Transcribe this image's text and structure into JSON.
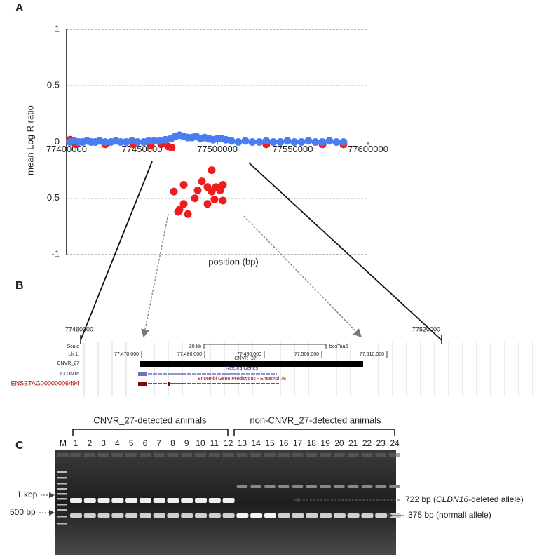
{
  "panel_labels": [
    "A",
    "B",
    "C"
  ],
  "chart_data": {
    "type": "scatter",
    "y_label": "mean Log R ratio",
    "x_label": "position (bp)",
    "xlim": [
      77400000,
      77600000
    ],
    "xticks": [
      77400000,
      77450000,
      77500000,
      77550000,
      77600000
    ],
    "ylim": [
      -1,
      1
    ],
    "yticks": [
      -1,
      -0.5,
      0,
      0.5,
      1
    ],
    "grid": true,
    "series": [
      {
        "color": "#ee1c1c",
        "x": [
          77402300,
          77406000,
          77425600,
          77444200,
          77455800,
          77462800,
          77467400,
          77469700,
          77532500,
          77569800,
          77583700,
          77496300,
          77489800,
          77493500,
          77477700,
          77499100,
          77503700,
          77471200,
          77487000,
          77496300,
          77501900,
          77485100,
          77498100,
          77503700,
          77477700,
          77493500,
          77474900,
          77474000,
          77480500
        ],
        "values": [
          0.02,
          -0.02,
          -0.02,
          -0.02,
          -0.03,
          -0.02,
          -0.04,
          -0.05,
          -0.02,
          -0.02,
          -0.02,
          -0.25,
          -0.35,
          -0.4,
          -0.38,
          -0.4,
          -0.38,
          -0.44,
          -0.43,
          -0.44,
          -0.43,
          -0.5,
          -0.51,
          -0.52,
          -0.55,
          -0.55,
          -0.6,
          -0.62,
          -0.64
        ]
      },
      {
        "color": "#4a7ef0",
        "x": [
          77402300,
          77405100,
          77407900,
          77410700,
          77413500,
          77416300,
          77419100,
          77421900,
          77425600,
          77429300,
          77432600,
          77435800,
          77439500,
          77443300,
          77447000,
          77451200,
          77454400,
          77458100,
          77461800,
          77465600,
          77469300,
          77472100,
          77474900,
          77477700,
          77480400,
          77483200,
          77486000,
          77488800,
          77491600,
          77494400,
          77497200,
          77500000,
          77502800,
          77505600,
          77509300,
          77513900,
          77518600,
          77523200,
          77527900,
          77532500,
          77537200,
          77541800,
          77546500,
          77551100,
          77555800,
          77560400,
          77565100,
          77569700,
          77574400,
          77579000,
          77583700
        ],
        "values": [
          0,
          0.01,
          0,
          0,
          0.01,
          0,
          0,
          0.01,
          0,
          0,
          0.01,
          0,
          0,
          0.01,
          0,
          0,
          0.01,
          0.01,
          0.01,
          0.02,
          0.03,
          0.05,
          0.06,
          0.05,
          0.04,
          0.04,
          0.05,
          0.03,
          0.04,
          0.03,
          0.02,
          0.03,
          0.03,
          0.02,
          0.01,
          0,
          0.01,
          0,
          0,
          0.01,
          0,
          0,
          0.01,
          0,
          0,
          0.01,
          0,
          0,
          0.01,
          0,
          0
        ]
      }
    ]
  },
  "browser": {
    "left_coord": "77460000",
    "right_coord": "77520000",
    "scale_label": "Scale",
    "chrom": "chr1:",
    "scale_bar": "20 kb",
    "assembly": "bosTau6",
    "positions": [
      "77,470,000",
      "77,480,000",
      "77,490,000",
      "77,500,000",
      "77,510,000"
    ],
    "tracks": {
      "cnv_left": "CNVR_27",
      "cnv_bar": "CNVR_27",
      "refseq_title": "RefSeq Genes",
      "gene": "CLDN16",
      "ensembl_title": "Ensembl Gene Predictions - Ensembl 76",
      "ensembl_gene": "ENSBTAG00000006494"
    }
  },
  "gel": {
    "group1": "CNVR_27-detected animals",
    "group2": "non-CNVR_27-detected animals",
    "lanes": [
      "M",
      "1",
      "2",
      "3",
      "4",
      "5",
      "6",
      "7",
      "8",
      "9",
      "10",
      "11",
      "12",
      "13",
      "14",
      "15",
      "16",
      "17",
      "18",
      "19",
      "20",
      "21",
      "22",
      "23",
      "24"
    ],
    "ladder_1kbp": "1 kbp",
    "ladder_500bp": "500 bp",
    "band_deleted": {
      "size": "722 bp (",
      "gene": "CLDN16",
      "rest": "-deleted allele)"
    },
    "band_normal": "375 bp (normall allele)"
  }
}
